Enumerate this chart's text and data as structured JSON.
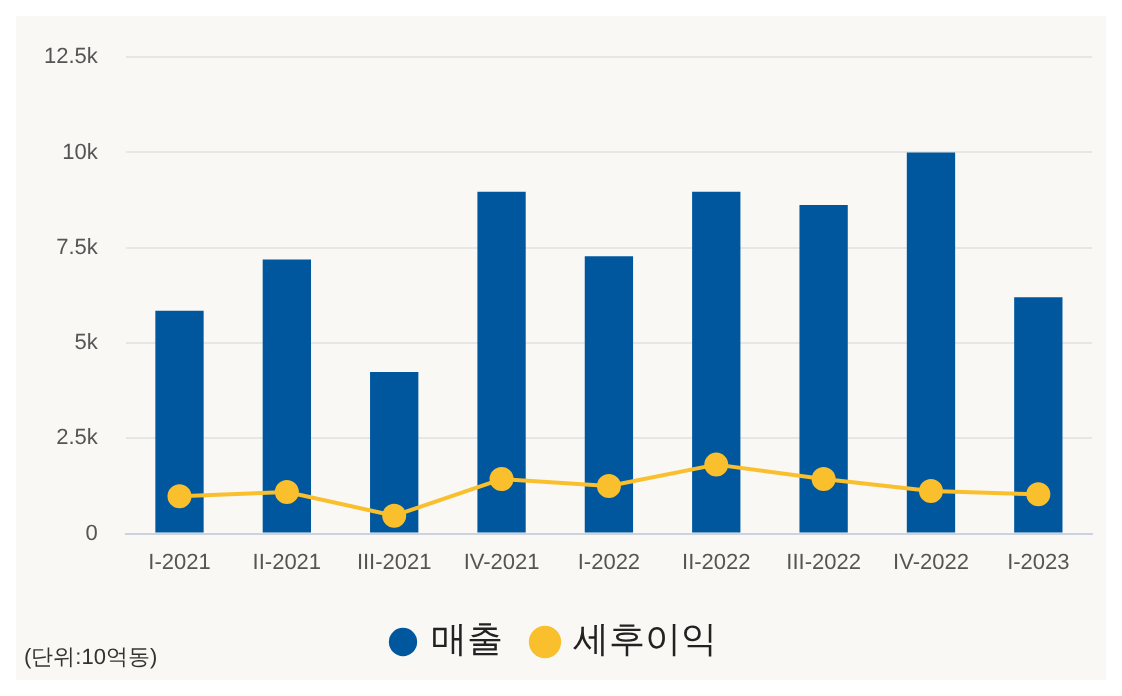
{
  "chart_data": {
    "type": "bar",
    "categories": [
      "I-2021",
      "II-2021",
      "III-2021",
      "IV-2021",
      "I-2022",
      "II-2022",
      "III-2022",
      "IV-2022",
      "I-2023"
    ],
    "series": [
      {
        "name": "매출",
        "color": "#00579e",
        "values": [
          5850,
          7190,
          4240,
          8970,
          7280,
          8970,
          8620,
          10000,
          6200
        ]
      },
      {
        "name": "세후이익",
        "type": "line",
        "color": "#f9bf2c",
        "marker": "circle",
        "values": [
          980,
          1090,
          470,
          1430,
          1250,
          1810,
          1430,
          1120,
          1030
        ]
      }
    ],
    "ylim": [
      0,
      12500
    ],
    "yticks": [
      {
        "value": 0,
        "label": "0"
      },
      {
        "value": 2500,
        "label": "2.5k"
      },
      {
        "value": 5000,
        "label": "5k"
      },
      {
        "value": 7500,
        "label": "7.5k"
      },
      {
        "value": 10000,
        "label": "10k"
      },
      {
        "value": 12500,
        "label": "12.5k"
      }
    ],
    "grid": "y",
    "legend": "bottom",
    "annotations": [
      "(단위:10억동)"
    ]
  }
}
